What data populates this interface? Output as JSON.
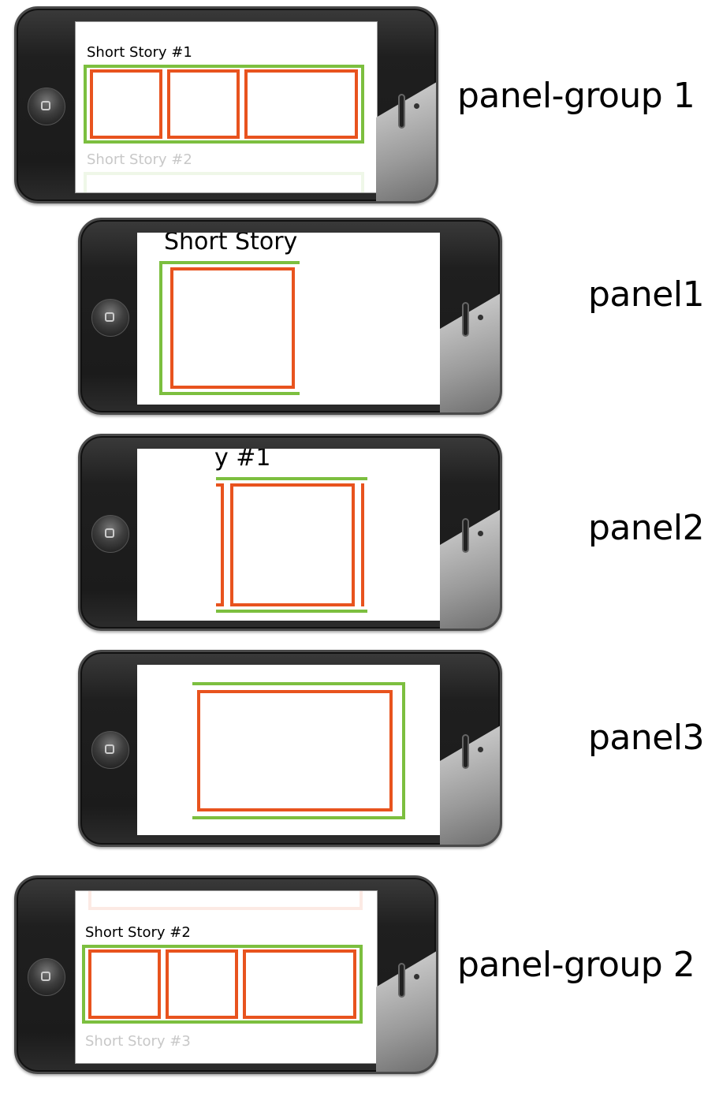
{
  "captions": {
    "panel_group_1": "panel-group 1",
    "panel1": "panel1",
    "panel2": "panel2",
    "panel3": "panel3",
    "panel_group_2": "panel-group 2"
  },
  "screens": {
    "group1_title": "Short Story #1",
    "group1_next_title": "Short Story #2",
    "panel1_title": "Short Story",
    "panel2_title": "y #1",
    "group2_title": "Short Story #2",
    "group2_next_title": "Short Story #3"
  },
  "colors": {
    "panel_group_frame": "#7cbf3f",
    "panel_frame": "#e8531e",
    "phone_body": "#1f1f1f"
  },
  "icons": {
    "home_button": "home-button-icon",
    "speaker": "speaker-icon",
    "camera": "camera-icon"
  }
}
